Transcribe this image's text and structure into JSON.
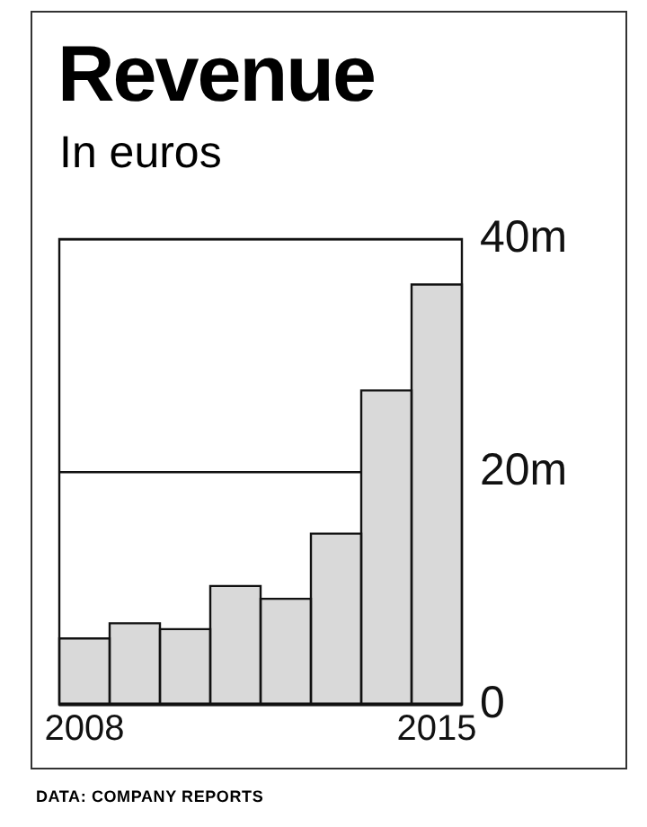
{
  "chart_data": {
    "type": "bar",
    "title": "Revenue",
    "subtitle": "In euros",
    "categories": [
      "2008",
      null,
      null,
      null,
      null,
      null,
      null,
      "2015"
    ],
    "values": [
      5.7,
      7.0,
      6.5,
      10.2,
      9.1,
      14.7,
      27.0,
      36.1
    ],
    "color": "#d9d9d9",
    "ylim": [
      0,
      40
    ],
    "yticks": [
      {
        "value": 0,
        "label": "0"
      },
      {
        "value": 20,
        "label": "20m"
      },
      {
        "value": 40,
        "label": "40m"
      }
    ],
    "grid": "y",
    "annotations": [
      "DATA: COMPANY REPORTS"
    ]
  }
}
